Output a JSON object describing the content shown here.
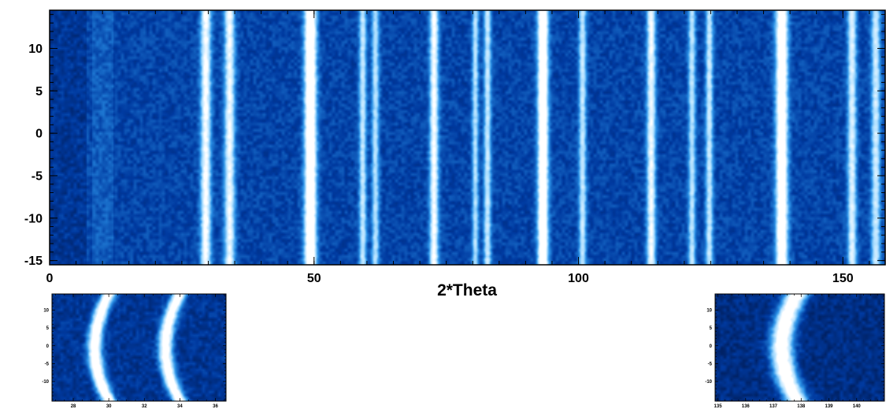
{
  "chart_data": [
    {
      "type": "heatmap",
      "title": "",
      "xlabel": "2*Theta",
      "ylabel": "",
      "xlim": [
        0,
        158
      ],
      "ylim": [
        -15.5,
        14.5
      ],
      "x_ticks": [
        0,
        50,
        100,
        150
      ],
      "y_ticks": [
        10,
        5,
        0,
        -5,
        -10,
        -15
      ],
      "x_tick_labels": [
        "0",
        "50",
        "100",
        "150"
      ],
      "y_tick_labels": [
        "10",
        "5",
        "0",
        "-5",
        "-10",
        "-15"
      ],
      "colormap": [
        "#00103a",
        "#003aa0",
        "#2a90e6",
        "#a6dcff",
        "#ffffff"
      ],
      "background_level": 0.28,
      "peaks": [
        {
          "x": 29.5,
          "intensity": 0.72,
          "width": 0.7,
          "curvature": 0.0
        },
        {
          "x": 34.0,
          "intensity": 0.68,
          "width": 0.7,
          "curvature": 0.0
        },
        {
          "x": 49.3,
          "intensity": 1.0,
          "width": 0.8,
          "curvature": 0.0
        },
        {
          "x": 59.2,
          "intensity": 0.55,
          "width": 0.5,
          "curvature": 0.0
        },
        {
          "x": 61.6,
          "intensity": 0.5,
          "width": 0.5,
          "curvature": 0.0
        },
        {
          "x": 72.7,
          "intensity": 0.72,
          "width": 0.6,
          "curvature": 0.0
        },
        {
          "x": 80.5,
          "intensity": 0.5,
          "width": 0.45,
          "curvature": 0.0
        },
        {
          "x": 82.8,
          "intensity": 0.55,
          "width": 0.5,
          "curvature": 0.0
        },
        {
          "x": 93.3,
          "intensity": 0.98,
          "width": 0.7,
          "curvature": 0.0
        },
        {
          "x": 100.8,
          "intensity": 0.55,
          "width": 0.5,
          "curvature": 0.0
        },
        {
          "x": 113.8,
          "intensity": 0.68,
          "width": 0.6,
          "curvature": 0.0
        },
        {
          "x": 121.5,
          "intensity": 0.52,
          "width": 0.5,
          "curvature": 0.0
        },
        {
          "x": 124.8,
          "intensity": 0.55,
          "width": 0.5,
          "curvature": 0.0
        },
        {
          "x": 138.5,
          "intensity": 0.95,
          "width": 0.8,
          "curvature": 0.0
        },
        {
          "x": 151.8,
          "intensity": 0.62,
          "width": 0.6,
          "curvature": 0.0
        },
        {
          "x": 156.3,
          "intensity": 0.58,
          "width": 0.6,
          "curvature": 0.0
        }
      ]
    },
    {
      "type": "heatmap",
      "title": "",
      "xlabel": "",
      "ylabel": "",
      "xlim": [
        26.8,
        36.6
      ],
      "ylim": [
        -15.5,
        14.5
      ],
      "x_ticks": [
        28,
        30,
        32,
        34,
        36
      ],
      "y_ticks": [
        10,
        5,
        0,
        -5,
        -10
      ],
      "x_tick_labels": [
        "28",
        "30",
        "32",
        "34",
        "36"
      ],
      "y_tick_labels": [
        "10",
        "5",
        "0",
        "-5",
        "-10"
      ],
      "colormap": [
        "#00103a",
        "#003aa0",
        "#2a90e6",
        "#a6dcff",
        "#ffffff"
      ],
      "background_level": 0.22,
      "peaks": [
        {
          "x": 30.0,
          "intensity": 0.95,
          "width": 0.28,
          "curvature": -0.8
        },
        {
          "x": 34.0,
          "intensity": 0.92,
          "width": 0.28,
          "curvature": -0.8
        }
      ]
    },
    {
      "type": "heatmap",
      "title": "",
      "xlabel": "",
      "ylabel": "",
      "xlim": [
        134.9,
        141.0
      ],
      "ylim": [
        -15.5,
        14.5
      ],
      "x_ticks": [
        135,
        136,
        137,
        138,
        139,
        140
      ],
      "y_ticks": [
        10,
        5,
        0,
        -5,
        -10
      ],
      "x_tick_labels": [
        "135",
        "136",
        "137",
        "138",
        "139",
        "140"
      ],
      "y_tick_labels": [
        "10",
        "5",
        "0",
        "-5",
        "-10"
      ],
      "colormap": [
        "#00103a",
        "#003aa0",
        "#2a90e6",
        "#a6dcff",
        "#ffffff"
      ],
      "background_level": 0.18,
      "peaks": [
        {
          "x": 137.85,
          "intensity": 1.0,
          "width": 0.28,
          "curvature": -0.55
        }
      ]
    }
  ]
}
